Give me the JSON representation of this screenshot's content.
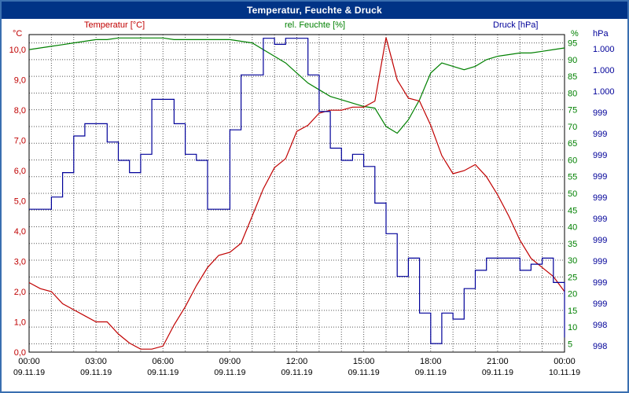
{
  "window": {
    "title": "Temperatur, Feuchte & Druck"
  },
  "legend": {
    "temperature": "Temperatur [°C]",
    "humidity": "rel. Feuchte [%]",
    "pressure": "Druck [hPa]"
  },
  "axis_units": {
    "temperature": "°C",
    "humidity": "%",
    "pressure": "hPa"
  },
  "colors": {
    "temperature": "#c00000",
    "humidity": "#008000",
    "pressure": "#000099",
    "title_bar_bg": "#003386",
    "title_text": "#ffffff",
    "frame": "#3a6fb0",
    "grid": "#555555",
    "plot_border": "#000000",
    "axis_text": "#000000",
    "background": "#ffffff"
  },
  "chart_data": {
    "type": "line",
    "title": "Temperatur, Feuchte & Druck",
    "grid": true,
    "sample_step_hours": 0.5,
    "x_axis": {
      "unit": "hours",
      "range": [
        0,
        24
      ],
      "tick_step_hours": 3,
      "grid_step_hours": 1,
      "ticks": [
        {
          "time": "00:00",
          "date": "09.11.19"
        },
        {
          "time": "03:00",
          "date": "09.11.19"
        },
        {
          "time": "06:00",
          "date": "09.11.19"
        },
        {
          "time": "09:00",
          "date": "09.11.19"
        },
        {
          "time": "12:00",
          "date": "09.11.19"
        },
        {
          "time": "15:00",
          "date": "09.11.19"
        },
        {
          "time": "18:00",
          "date": "09.11.19"
        },
        {
          "time": "21:00",
          "date": "09.11.19"
        },
        {
          "time": "00:00",
          "date": "10.11.19"
        }
      ]
    },
    "y_axes": {
      "temperature": {
        "label": "Temperatur [°C]",
        "range": [
          0,
          10.5
        ],
        "tick_values": [
          0,
          1,
          2,
          3,
          4,
          5,
          6,
          7,
          8,
          9,
          10
        ],
        "tick_labels": [
          "0,0",
          "1,0",
          "2,0",
          "3,0",
          "4,0",
          "5,0",
          "6,0",
          "7,0",
          "8,0",
          "9,0",
          "10,0"
        ]
      },
      "humidity": {
        "label": "rel. Feuchte [%]",
        "range": [
          2.5,
          97.5
        ],
        "tick_values": [
          5,
          10,
          15,
          20,
          25,
          30,
          35,
          40,
          45,
          50,
          55,
          60,
          65,
          70,
          75,
          80,
          85,
          90,
          95
        ],
        "tick_labels": [
          "5",
          "10",
          "15",
          "20",
          "25",
          "30",
          "35",
          "40",
          "45",
          "50",
          "55",
          "60",
          "65",
          "70",
          "75",
          "80",
          "85",
          "90",
          "95"
        ]
      },
      "pressure": {
        "label": "Druck [hPa]",
        "range": [
          997.88,
          1000.48
        ],
        "tick_labels_top_to_bottom": [
          "1.000",
          "1.000",
          "1.000",
          "999",
          "999",
          "999",
          "999",
          "999",
          "999",
          "999",
          "999",
          "999",
          "999",
          "998",
          "998"
        ]
      }
    },
    "series": [
      {
        "name": "rel. Feuchte",
        "unit": "%",
        "axis": "humidity",
        "color_key": "humidity",
        "style": "linear",
        "values": [
          93,
          93.5,
          94,
          94.5,
          95,
          95.5,
          96,
          96,
          96.5,
          96.5,
          96.5,
          96.5,
          96.5,
          96,
          96,
          96,
          96,
          96,
          96,
          95.5,
          95,
          93,
          91,
          89,
          86,
          83,
          81,
          79,
          78,
          77,
          76,
          75.5,
          70,
          68,
          72,
          78,
          86,
          89,
          88,
          87,
          88,
          90,
          91,
          91.5,
          92,
          92,
          92.5,
          93,
          93.5
        ]
      },
      {
        "name": "Temperatur",
        "unit": "°C",
        "axis": "temperature",
        "color_key": "temperature",
        "style": "linear",
        "values": [
          2.3,
          2.1,
          2.0,
          1.6,
          1.4,
          1.2,
          1.0,
          1.0,
          0.6,
          0.3,
          0.1,
          0.1,
          0.2,
          0.9,
          1.5,
          2.2,
          2.8,
          3.2,
          3.3,
          3.6,
          4.5,
          5.4,
          6.1,
          6.4,
          7.3,
          7.5,
          7.9,
          8.0,
          8.0,
          8.1,
          8.1,
          8.3,
          10.4,
          9.0,
          8.4,
          8.3,
          7.5,
          6.5,
          5.9,
          6.0,
          6.2,
          5.8,
          5.2,
          4.5,
          3.7,
          3.1,
          2.8,
          2.5,
          2.0
        ]
      },
      {
        "name": "Druck",
        "unit": "hPa",
        "axis": "pressure",
        "color_key": "pressure",
        "style": "step",
        "values": [
          999.05,
          999.05,
          999.15,
          999.35,
          999.65,
          999.75,
          999.75,
          999.6,
          999.45,
          999.35,
          999.5,
          999.95,
          999.95,
          999.75,
          999.5,
          999.45,
          999.05,
          999.05,
          999.7,
          1000.15,
          1000.15,
          1000.45,
          1000.4,
          1000.45,
          1000.45,
          1000.15,
          999.85,
          999.55,
          999.45,
          999.5,
          999.4,
          999.1,
          998.85,
          998.5,
          998.65,
          998.2,
          997.95,
          998.2,
          998.15,
          998.4,
          998.55,
          998.65,
          998.65,
          998.65,
          998.55,
          998.6,
          998.65,
          998.45,
          998.0
        ]
      }
    ]
  }
}
